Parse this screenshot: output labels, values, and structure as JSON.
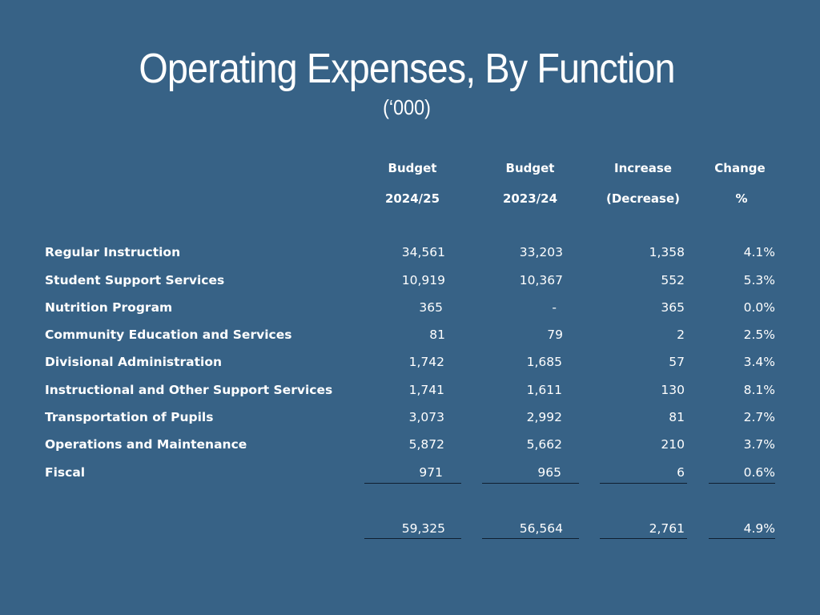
{
  "title": "Operating Expenses, By Function",
  "subtitle": "(‘000)",
  "columns": [
    {
      "line1": "Budget",
      "line2": "2024/25"
    },
    {
      "line1": "Budget",
      "line2": "2023/24"
    },
    {
      "line1": "Increase",
      "line2": "(Decrease)"
    },
    {
      "line1": "Change",
      "line2": "%"
    }
  ],
  "rows": [
    {
      "label": "Regular Instruction",
      "budget_2024_25": "34,561",
      "budget_2023_24": "33,203",
      "increase": "1,358",
      "change": "4.1%"
    },
    {
      "label": "Student Support Services",
      "budget_2024_25": "10,919",
      "budget_2023_24": "10,367",
      "increase": "552",
      "change": "5.3%"
    },
    {
      "label": "Nutrition Program",
      "budget_2024_25": "365",
      "budget_2023_24": "-",
      "increase": "365",
      "change": "0.0%"
    },
    {
      "label": "Community Education and Services",
      "budget_2024_25": "81",
      "budget_2023_24": "79",
      "increase": "2",
      "change": "2.5%"
    },
    {
      "label": "Divisional Administration",
      "budget_2024_25": "1,742",
      "budget_2023_24": "1,685",
      "increase": "57",
      "change": "3.4%"
    },
    {
      "label": "Instructional and Other Support Services",
      "budget_2024_25": "1,741",
      "budget_2023_24": "1,611",
      "increase": "130",
      "change": "8.1%"
    },
    {
      "label": "Transportation of Pupils",
      "budget_2024_25": "3,073",
      "budget_2023_24": "2,992",
      "increase": "81",
      "change": "2.7%"
    },
    {
      "label": "Operations and Maintenance",
      "budget_2024_25": "5,872",
      "budget_2023_24": "5,662",
      "increase": "210",
      "change": "3.7%"
    },
    {
      "label": "Fiscal",
      "budget_2024_25": "971",
      "budget_2023_24": "965",
      "increase": "6",
      "change": "0.6%"
    }
  ],
  "total": {
    "budget_2024_25": "59,325",
    "budget_2023_24": "56,564",
    "increase": "2,761",
    "change": "4.9%"
  }
}
